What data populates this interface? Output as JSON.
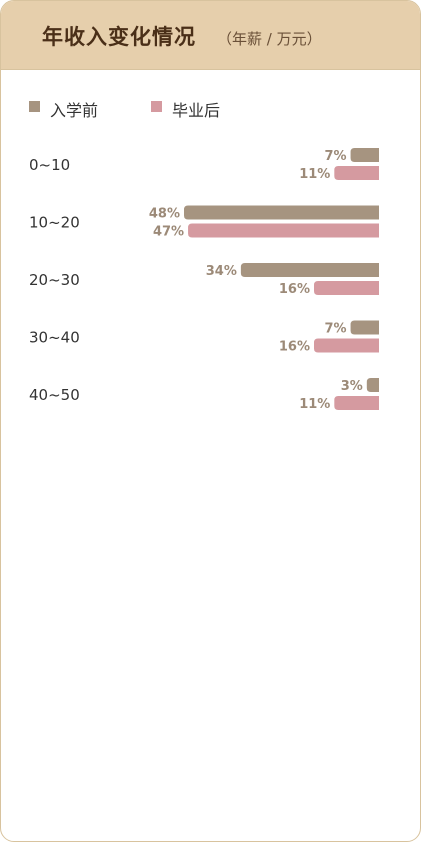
{
  "header": {
    "title": "年收入变化情况",
    "subtitle": "（年薪 / 万元）"
  },
  "legend": [
    {
      "label": "入学前",
      "color": "#a69480"
    },
    {
      "label": "毕业后",
      "color": "#d59aa0"
    }
  ],
  "chart_data": {
    "type": "bar",
    "title": "年收入变化情况",
    "subtitle": "（年薪 / 万元）",
    "categories": [
      "0~10",
      "10~20",
      "20~30",
      "30~40",
      "40~50"
    ],
    "series": [
      {
        "name": "入学前",
        "values": [
          7,
          48,
          34,
          7,
          3
        ],
        "color": "#a69480"
      },
      {
        "name": "毕业后",
        "values": [
          11,
          47,
          16,
          16,
          11
        ],
        "color": "#d59aa0"
      }
    ],
    "unit": "%",
    "xlim": [
      0,
      100
    ],
    "grid": false,
    "legend_position": "top-left"
  }
}
